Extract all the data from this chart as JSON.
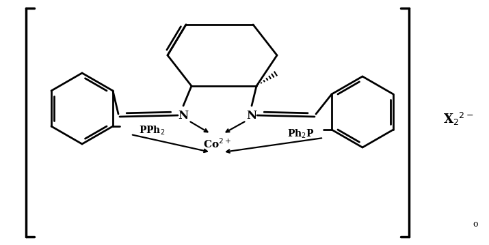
{
  "background_color": "#ffffff",
  "line_color": "#000000",
  "line_width": 2.0,
  "fig_width": 7.15,
  "fig_height": 3.59,
  "dpi": 100,
  "co_label": "Co$^{2+}$",
  "n_left_label": "N",
  "n_right_label": "N",
  "x2_label": "X$_2$$^{2-}$",
  "degree_label": "o"
}
